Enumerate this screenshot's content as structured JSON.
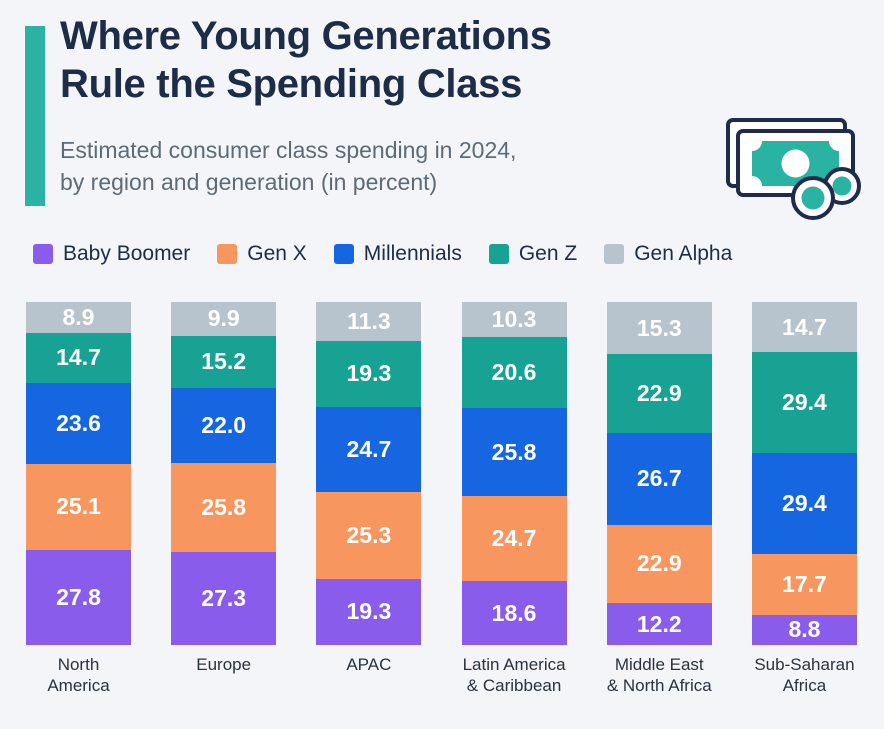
{
  "header": {
    "title_line1": "Where Young Generations",
    "title_line2": "Rule the Spending Class",
    "subtitle_line1": "Estimated consumer class spending in 2024,",
    "subtitle_line2": "by region and generation (in percent)"
  },
  "icons": {
    "money_icon": "banknotes-with-coins"
  },
  "colors": {
    "background": "#f3f5f9",
    "accent_teal": "#2ab3a3",
    "title_navy": "#1d2c47",
    "subtitle_gray": "#5d6b77",
    "category_label": "#2a323c",
    "value_label": "#ffffff",
    "icon_outline": "#1e2b4d"
  },
  "chart_data": {
    "type": "bar",
    "stacked": true,
    "orientation": "vertical",
    "unit": "percent",
    "legend_position": "top",
    "grid": false,
    "ylim": [
      0,
      100
    ],
    "categories": [
      "North America",
      "Europe",
      "APAC",
      "Latin America & Caribbean",
      "Middle East & North Africa",
      "Sub-Saharan Africa"
    ],
    "category_lines": [
      [
        "North",
        "America"
      ],
      [
        "Europe"
      ],
      [
        "APAC"
      ],
      [
        "Latin America",
        "& Caribbean"
      ],
      [
        "Middle East",
        "& North Africa"
      ],
      [
        "Sub-Saharan",
        "Africa"
      ]
    ],
    "stack_order_bottom_to_top": [
      "Baby Boomer",
      "Gen X",
      "Millennials",
      "Gen Z",
      "Gen Alpha"
    ],
    "series": [
      {
        "name": "Baby Boomer",
        "color": "#8a5cec",
        "values": [
          27.8,
          27.3,
          19.3,
          18.6,
          12.2,
          8.8
        ]
      },
      {
        "name": "Gen X",
        "color": "#f7975f",
        "values": [
          25.1,
          25.8,
          25.3,
          24.7,
          22.9,
          17.7
        ]
      },
      {
        "name": "Millennials",
        "color": "#1566e0",
        "values": [
          23.6,
          22.0,
          24.7,
          25.8,
          26.7,
          29.4
        ]
      },
      {
        "name": "Gen Z",
        "color": "#17a294",
        "values": [
          14.7,
          15.2,
          19.3,
          20.6,
          22.9,
          29.4
        ]
      },
      {
        "name": "Gen Alpha",
        "color": "#b8c4cd",
        "values": [
          8.9,
          9.9,
          11.3,
          10.3,
          15.3,
          14.7
        ]
      }
    ]
  }
}
